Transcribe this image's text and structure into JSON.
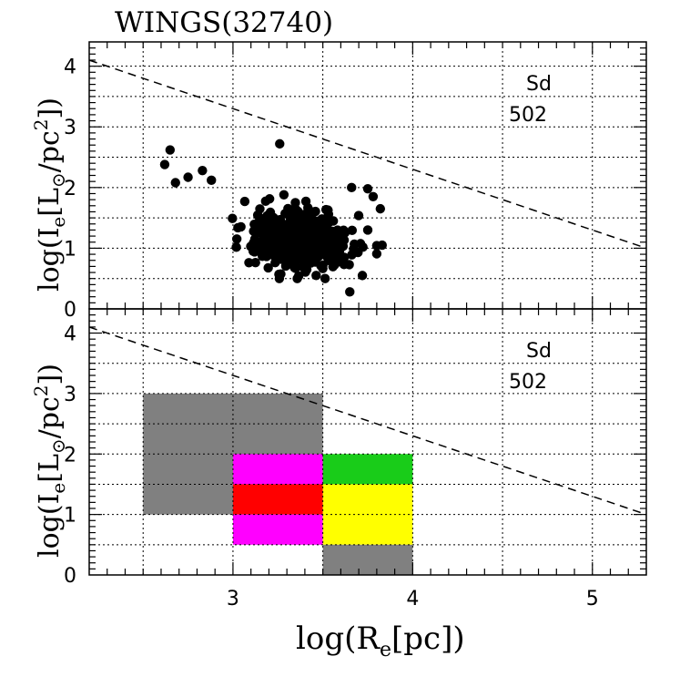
{
  "title": "WINGS(32740)",
  "xlabel": "log(R",
  "xlabel_sub": "e",
  "xlabel_unit": "[pc])",
  "ylabel_prefix": "log(I",
  "ylabel_sub": "e",
  "ylabel_mid": "[L",
  "ylabel_sun": "⊙",
  "ylabel_unit": "/pc",
  "ylabel_sup": "2",
  "ylabel_close": "])",
  "colors": {
    "gray": "#808080",
    "magenta": "#ff00ff",
    "red": "#ff0000",
    "green": "#19cc19",
    "yellow": "#ffff00",
    "black": "#000000"
  },
  "chart_data": [
    {
      "type": "scatter",
      "panel": "top",
      "annotation_type": "Sd",
      "annotation_count": "502",
      "xlim": [
        2.2,
        5.3
      ],
      "ylim": [
        0,
        4.4
      ],
      "xticks": [
        3,
        4,
        5
      ],
      "yticks": [
        0,
        1,
        2,
        3,
        4
      ],
      "reference_line": {
        "x": [
          2.2,
          5.3
        ],
        "y": [
          4.1,
          1.0
        ],
        "style": "dashed"
      },
      "outliers": [
        {
          "x": 2.65,
          "y": 2.62
        },
        {
          "x": 2.62,
          "y": 2.38
        },
        {
          "x": 2.68,
          "y": 2.08
        },
        {
          "x": 2.75,
          "y": 2.17
        },
        {
          "x": 2.83,
          "y": 2.28
        },
        {
          "x": 2.88,
          "y": 2.12
        },
        {
          "x": 3.26,
          "y": 2.72
        },
        {
          "x": 3.66,
          "y": 2.0
        },
        {
          "x": 3.75,
          "y": 1.98
        },
        {
          "x": 3.65,
          "y": 0.28
        },
        {
          "x": 3.72,
          "y": 0.55
        },
        {
          "x": 3.83,
          "y": 1.05
        },
        {
          "x": 3.75,
          "y": 1.3
        },
        {
          "x": 3.78,
          "y": 1.85
        },
        {
          "x": 3.82,
          "y": 1.65
        }
      ],
      "cluster": {
        "n": 487,
        "x_center": 3.37,
        "y_center": 1.15,
        "x_spread": 0.13,
        "y_spread": 0.24,
        "x_range": [
          2.92,
          3.8
        ],
        "y_range": [
          0.5,
          1.9
        ],
        "seed": 32740
      }
    },
    {
      "type": "heatmap",
      "panel": "bottom",
      "annotation_type": "Sd",
      "annotation_count": "502",
      "xlim": [
        2.2,
        5.3
      ],
      "ylim": [
        0,
        4.4
      ],
      "xticks": [
        3,
        4,
        5
      ],
      "yticks": [
        0,
        1,
        2,
        3,
        4
      ],
      "reference_line": {
        "x": [
          2.2,
          5.3
        ],
        "y": [
          4.1,
          1.0
        ],
        "style": "dashed"
      },
      "cells": [
        {
          "x0": 2.5,
          "x1": 3.5,
          "y0": 1.0,
          "y1": 3.0,
          "color": "gray"
        },
        {
          "x0": 3.0,
          "x1": 3.5,
          "y0": 1.5,
          "y1": 2.0,
          "color": "magenta"
        },
        {
          "x0": 3.0,
          "x1": 3.5,
          "y0": 1.0,
          "y1": 1.5,
          "color": "red"
        },
        {
          "x0": 3.0,
          "x1": 3.5,
          "y0": 0.5,
          "y1": 1.0,
          "color": "magenta"
        },
        {
          "x0": 3.5,
          "x1": 4.0,
          "y0": 1.5,
          "y1": 2.0,
          "color": "green"
        },
        {
          "x0": 3.5,
          "x1": 4.0,
          "y0": 0.5,
          "y1": 1.5,
          "color": "yellow"
        },
        {
          "x0": 3.5,
          "x1": 4.0,
          "y0": 0.0,
          "y1": 0.5,
          "color": "gray"
        }
      ]
    }
  ]
}
